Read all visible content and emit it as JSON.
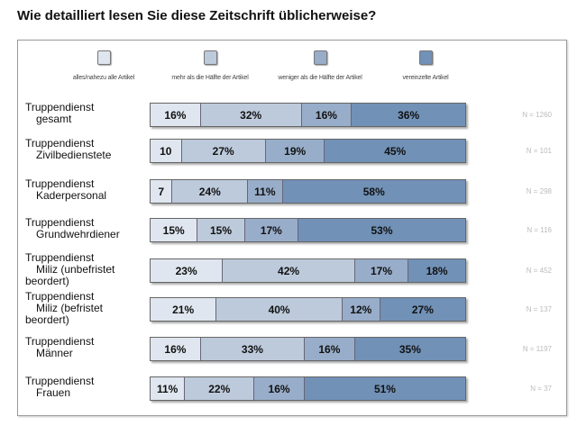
{
  "chart_data": {
    "type": "bar",
    "orientation": "horizontal-stacked-100",
    "title": "Wie detailliert lesen Sie diese Zeitschrift üblicherweise?",
    "legend_position": "top",
    "series": [
      {
        "name": "alles/nahezu alle Artikel",
        "color": "#dfe6ef",
        "values": [
          16,
          10,
          7,
          15,
          23,
          21,
          16,
          11
        ],
        "labels": [
          "16%",
          "10",
          "7",
          "15%",
          "23%",
          "21%",
          "16%",
          "11%"
        ]
      },
      {
        "name": "mehr als die Hälfte der Artikel",
        "color": "#bdcadb",
        "values": [
          32,
          27,
          24,
          15,
          42,
          40,
          33,
          22
        ],
        "labels": [
          "32%",
          "27%",
          "24%",
          "15%",
          "42%",
          "40%",
          "33%",
          "22%"
        ]
      },
      {
        "name": "weniger als die Hälfte der Artikel",
        "color": "#98adc9",
        "values": [
          16,
          19,
          11,
          17,
          17,
          12,
          16,
          16
        ],
        "labels": [
          "16%",
          "19%",
          "11%",
          "17%",
          "17%",
          "12%",
          "16%",
          "16%"
        ]
      },
      {
        "name": "vereinzelte Artikel",
        "color": "#7191b7",
        "values": [
          36,
          45,
          58,
          53,
          18,
          27,
          35,
          51
        ],
        "labels": [
          "36%",
          "45%",
          "58%",
          "53%",
          "18%",
          "27%",
          "35%",
          "51%"
        ]
      }
    ],
    "categories": [
      {
        "line1": "Truppendienst",
        "line2": "gesamt",
        "line3": "",
        "n": "N = 1260"
      },
      {
        "line1": "Truppendienst",
        "line2": "Zivilbedienstete",
        "line3": "",
        "n": "N = 101"
      },
      {
        "line1": "Truppendienst",
        "line2": "Kaderpersonal",
        "line3": "",
        "n": "N = 298"
      },
      {
        "line1": "Truppendienst",
        "line2": "Grundwehrdiener",
        "line3": "",
        "n": "N = 116"
      },
      {
        "line1": "Truppendienst",
        "line2": "Miliz (unbefristet",
        "line3": "beordert)",
        "n": "N = 452"
      },
      {
        "line1": "Truppendienst",
        "line2": "Miliz (befristet",
        "line3": "beordert)",
        "n": "N = 137"
      },
      {
        "line1": "Truppendienst",
        "line2": "Männer",
        "line3": "",
        "n": "N = 1197"
      },
      {
        "line1": "Truppendienst",
        "line2": "Frauen",
        "line3": "",
        "n": "N = 37"
      }
    ]
  }
}
